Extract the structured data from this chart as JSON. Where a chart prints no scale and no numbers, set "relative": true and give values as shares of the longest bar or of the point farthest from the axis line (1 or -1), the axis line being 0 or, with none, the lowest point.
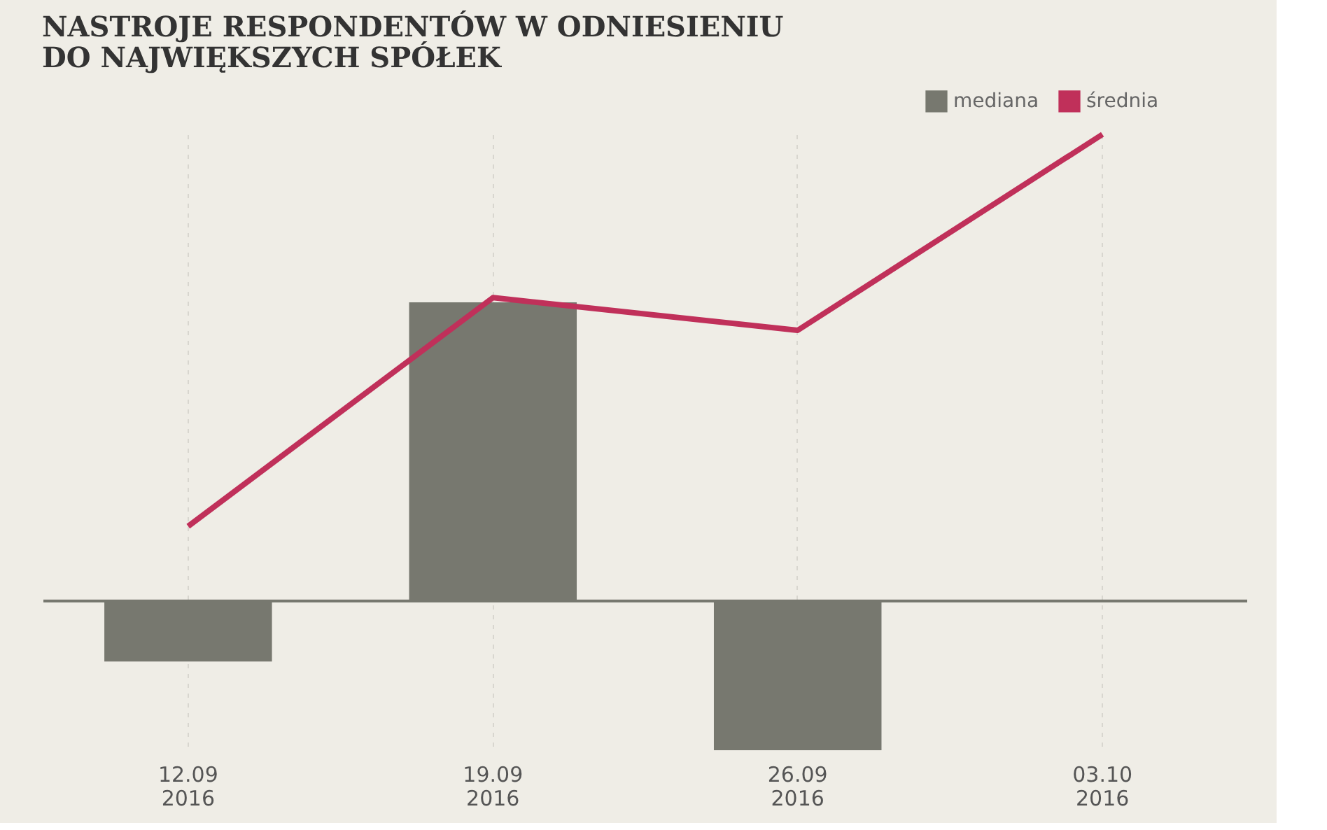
{
  "chart_data": {
    "type": "bar",
    "title": [
      "NASTROJE RESPONDENTÓW W ODNIESIENIU",
      "DO NAJWIĘKSZYCH SPÓŁEK"
    ],
    "categories": [
      "12.09 2016",
      "19.09 2016",
      "26.09 2016",
      "03.10 2016"
    ],
    "relative": true,
    "legend": "top right",
    "grid": "x",
    "series": [
      {
        "name": "mediana",
        "color": "#77786f",
        "values": [
          -0.13,
          0.64,
          -0.32,
          0
        ]
      },
      {
        "name": "średnia",
        "type": "line",
        "color": "#c0305a",
        "values": [
          0.16,
          0.65,
          0.58,
          1
        ]
      }
    ]
  }
}
